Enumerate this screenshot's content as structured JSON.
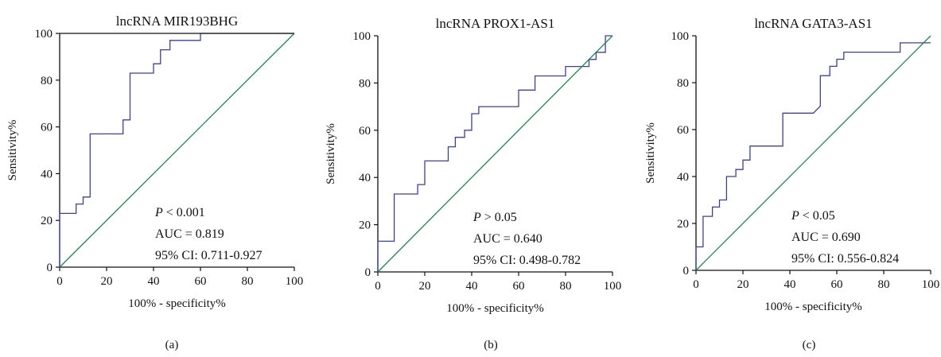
{
  "colors": {
    "roc": "#3f3f9e",
    "reference": "#1b8a4a",
    "axis": "#111111"
  },
  "chart_data": [
    {
      "type": "line",
      "panel_label": "(a)",
      "title": "lncRNA MIR193BHG",
      "xlabel": "100% - specificity%",
      "ylabel": "Sensitivity%",
      "xlim": [
        0,
        100
      ],
      "ylim": [
        0,
        100
      ],
      "xticks": [
        "0",
        "20",
        "40",
        "60",
        "80",
        "100"
      ],
      "yticks": [
        "0",
        "20",
        "40",
        "60",
        "80",
        "100"
      ],
      "p_label": "P",
      "p_value": " < 0.001",
      "auc": "AUC = 0.819",
      "ci": "95% CI: 0.711-0.927",
      "series": [
        {
          "x": [
            0,
            0,
            7,
            7,
            10,
            10,
            13,
            13,
            17,
            17,
            27,
            27,
            30,
            30,
            40,
            40,
            43,
            43,
            47,
            47,
            60,
            60,
            100
          ],
          "y": [
            0,
            23,
            23,
            27,
            27,
            30,
            30,
            57,
            57,
            57,
            57,
            63,
            63,
            83,
            83,
            87,
            87,
            93,
            93,
            97,
            97,
            100,
            100
          ]
        },
        {
          "x": [
            0,
            100
          ],
          "y": [
            0,
            100
          ]
        }
      ]
    },
    {
      "type": "line",
      "panel_label": "(b)",
      "title": "lncRNA PROX1-AS1",
      "xlabel": "100% - specificity%",
      "ylabel": "Sensitivity%",
      "xlim": [
        0,
        100
      ],
      "ylim": [
        0,
        100
      ],
      "xticks": [
        "0",
        "20",
        "40",
        "60",
        "80",
        "100"
      ],
      "yticks": [
        "0",
        "20",
        "40",
        "60",
        "80",
        "100"
      ],
      "p_label": "P",
      "p_value": " > 0.05",
      "auc": "AUC = 0.640",
      "ci": "95% CI: 0.498-0.782",
      "series": [
        {
          "x": [
            0,
            0,
            7,
            7,
            17,
            17,
            20,
            20,
            30,
            30,
            33,
            33,
            37,
            37,
            40,
            40,
            43,
            43,
            47,
            47,
            60,
            60,
            67,
            67,
            80,
            80,
            90,
            90,
            93,
            93,
            97,
            97,
            100
          ],
          "y": [
            0,
            13,
            13,
            33,
            33,
            37,
            37,
            47,
            47,
            53,
            53,
            57,
            57,
            60,
            60,
            67,
            67,
            70,
            70,
            70,
            70,
            77,
            77,
            83,
            83,
            87,
            87,
            90,
            90,
            93,
            93,
            100,
            100
          ]
        },
        {
          "x": [
            0,
            100
          ],
          "y": [
            0,
            100
          ]
        }
      ]
    },
    {
      "type": "line",
      "panel_label": "(c)",
      "title": "lncRNA GATA3-AS1",
      "xlabel": "100% - specificity%",
      "ylabel": "Sensitivity%",
      "xlim": [
        0,
        100
      ],
      "ylim": [
        0,
        100
      ],
      "xticks": [
        "0",
        "20",
        "40",
        "60",
        "80",
        "100"
      ],
      "yticks": [
        "0",
        "20",
        "40",
        "60",
        "80",
        "100"
      ],
      "p_label": "P",
      "p_value": " < 0.05",
      "auc": "AUC = 0.690",
      "ci": "95% CI: 0.556-0.824",
      "series": [
        {
          "x": [
            0,
            0,
            3,
            3,
            7,
            7,
            10,
            10,
            13,
            13,
            17,
            17,
            20,
            20,
            23,
            23,
            37,
            37,
            50,
            50,
            53,
            53,
            57,
            57,
            60,
            60,
            63,
            63,
            87,
            87,
            100
          ],
          "y": [
            0,
            10,
            10,
            23,
            23,
            27,
            27,
            30,
            30,
            40,
            40,
            43,
            43,
            47,
            47,
            53,
            53,
            67,
            67,
            67,
            70,
            83,
            83,
            87,
            87,
            90,
            90,
            93,
            93,
            97,
            97
          ]
        },
        {
          "x": [
            0,
            100
          ],
          "y": [
            0,
            100
          ]
        }
      ]
    }
  ]
}
